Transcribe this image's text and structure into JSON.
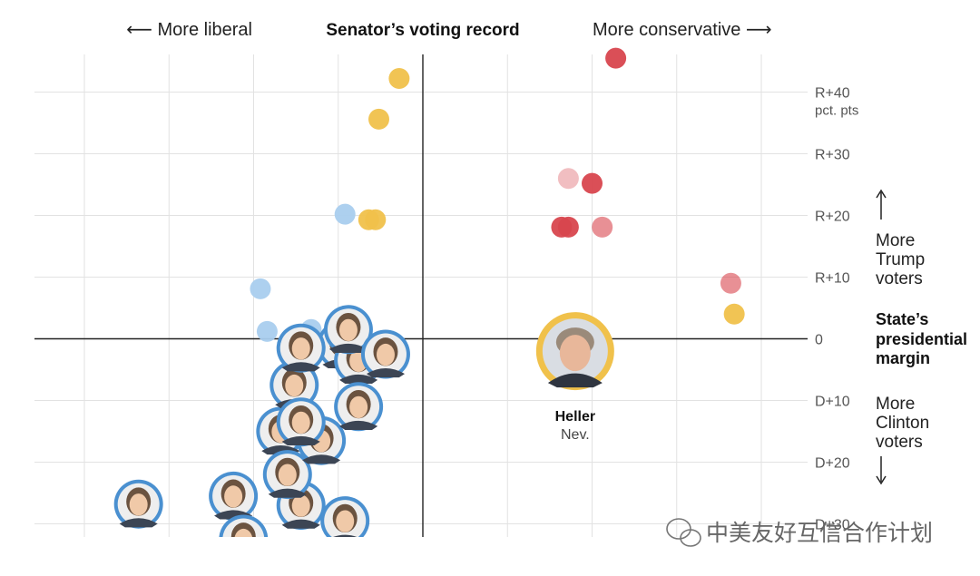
{
  "chart_data": {
    "type": "scatter",
    "title": "Senator’s voting record",
    "x_left_label": "More liberal",
    "x_right_label": "More conservative",
    "y_title": [
      "State’s",
      "presidential",
      "margin"
    ],
    "y_up_label": [
      "More",
      "Trump",
      "voters"
    ],
    "y_down_label": [
      "More",
      "Clinton",
      "voters"
    ],
    "y_unit": "pct. pts",
    "xlim": [
      -1,
      1
    ],
    "ylim": [
      -33,
      46
    ],
    "y_ticks": [
      {
        "value": 40,
        "label": "R+40"
      },
      {
        "value": 30,
        "label": "R+30"
      },
      {
        "value": 20,
        "label": "R+20"
      },
      {
        "value": 10,
        "label": "R+10"
      },
      {
        "value": 0,
        "label": "0"
      },
      {
        "value": -10,
        "label": "D+10"
      },
      {
        "value": -20,
        "label": "D+20"
      },
      {
        "value": -30,
        "label": "D+30"
      }
    ],
    "grid": true,
    "series": [
      {
        "party": "Democrat",
        "color": "#a9cdee",
        "points": [
          {
            "x": -0.46,
            "y": 1.2
          },
          {
            "x": -0.48,
            "y": 8.1
          },
          {
            "x": -0.23,
            "y": 20.2
          },
          {
            "x": -0.33,
            "y": 1.5
          },
          {
            "x": -0.21,
            "y": 1.5
          }
        ]
      },
      {
        "party": "Republican",
        "color": "#d8464e",
        "points": [
          {
            "x": 0.57,
            "y": 45.5
          },
          {
            "x": 0.5,
            "y": 25.2
          },
          {
            "x": 0.41,
            "y": 18.1
          },
          {
            "x": 0.43,
            "y": 18.1
          },
          {
            "x": 0.53,
            "y": 18.1
          },
          {
            "x": 0.91,
            "y": 9.0
          },
          {
            "x": 0.43,
            "y": 26.0
          }
        ]
      },
      {
        "party": "Independent",
        "color": "#f0c14b",
        "points": [
          {
            "x": -0.07,
            "y": 42.2
          },
          {
            "x": -0.13,
            "y": 35.6
          },
          {
            "x": -0.16,
            "y": 19.3
          },
          {
            "x": -0.14,
            "y": 19.3
          },
          {
            "x": 0.92,
            "y": 4.0
          }
        ]
      }
    ],
    "portraits": [
      {
        "x": -0.84,
        "y": -26.8,
        "border": "#4a90d0"
      },
      {
        "x": -0.56,
        "y": -25.5,
        "border": "#4a90d0"
      },
      {
        "x": -0.53,
        "y": -32.5,
        "border": "#4a90d0"
      },
      {
        "x": -0.36,
        "y": -27.0,
        "border": "#4a90d0"
      },
      {
        "x": -0.23,
        "y": -29.5,
        "border": "#4a90d0"
      },
      {
        "x": -0.42,
        "y": -15.0,
        "border": "#4a90d0"
      },
      {
        "x": -0.4,
        "y": -22.0,
        "border": "#4a90d0"
      },
      {
        "x": -0.3,
        "y": -16.5,
        "border": "#4a90d0"
      },
      {
        "x": -0.38,
        "y": -7.5,
        "border": "#4a90d0"
      },
      {
        "x": -0.36,
        "y": -13.5,
        "border": "#4a90d0"
      },
      {
        "x": -0.24,
        "y": -1.0,
        "border": "#4a90d0"
      },
      {
        "x": -0.19,
        "y": -3.5,
        "border": "#4a90d0"
      },
      {
        "x": -0.36,
        "y": -1.5,
        "border": "#4a90d0"
      },
      {
        "x": -0.22,
        "y": 1.5,
        "border": "#4a90d0"
      },
      {
        "x": -0.11,
        "y": -2.5,
        "border": "#4a90d0"
      },
      {
        "x": -0.19,
        "y": -11.0,
        "border": "#4a90d0"
      }
    ],
    "highlight": {
      "name": "Heller",
      "state": "Nev.",
      "x": 0.45,
      "y": -2.0,
      "border": "#f0c14b"
    }
  },
  "watermark": "中美友好互信合作计划"
}
